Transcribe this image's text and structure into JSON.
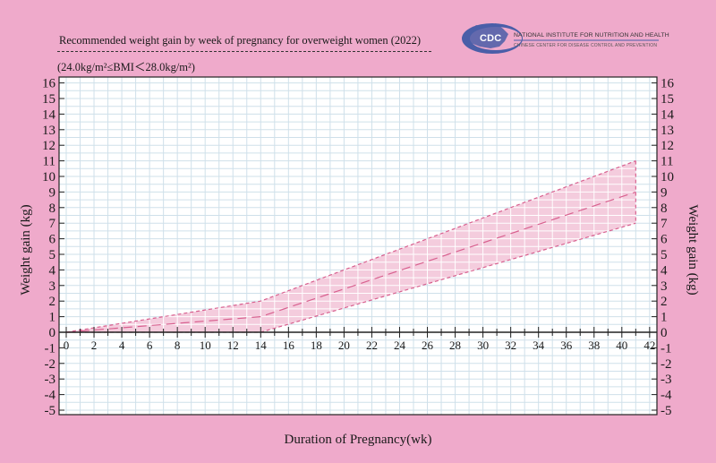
{
  "header": {
    "title": "Recommended  weight gain by week of pregnancy for overweight women (2022)",
    "subtitle": "(24.0kg/m²≤BMI＜28.0kg/m²)"
  },
  "logo": {
    "badge": "CDC",
    "line1": "NATIONAL INSTITUTE FOR NUTRITION AND HEALTH",
    "line2": "CHINESE CENTER FOR DISEASE CONTROL AND PREVENTION"
  },
  "colors": {
    "background": "#efaacb",
    "band_fill": "#f3c6d9",
    "band_line": "#d8608f",
    "grid": "#cfe0ea",
    "logo_blue": "#4a5ea8"
  },
  "chart_data": {
    "type": "area",
    "title": "Recommended  weight gain by week of pregnancy for overweight women (2022)",
    "subtitle": "(24.0kg/m²≤BMI＜28.0kg/m²)",
    "xlabel": "Duration of Pregnancy(wk)",
    "ylabel": "Weight gain (kg)",
    "ylabel_right": "Weight gain (kg)",
    "xlim": [
      0,
      42
    ],
    "ylim": [
      -5,
      16
    ],
    "x_ticks": [
      "0",
      "2",
      "4",
      "6",
      "8",
      "10",
      "12",
      "14",
      "16",
      "18",
      "20",
      "22",
      "24",
      "26",
      "28",
      "30",
      "32",
      "34",
      "36",
      "38",
      "40",
      "42"
    ],
    "y_ticks": [
      "-5",
      "-4",
      "-3",
      "-2",
      "-1",
      "0",
      "1",
      "2",
      "3",
      "4",
      "5",
      "6",
      "7",
      "8",
      "9",
      "10",
      "11",
      "12",
      "13",
      "14",
      "15",
      "16"
    ],
    "grid": true,
    "series": [
      {
        "role": "upper",
        "x": [
          0,
          14,
          41
        ],
        "values": [
          0,
          2,
          11
        ]
      },
      {
        "role": "middle",
        "x": [
          0,
          14,
          41
        ],
        "values": [
          0,
          1,
          9
        ]
      },
      {
        "role": "lower",
        "x": [
          0,
          14,
          41
        ],
        "values": [
          0,
          0,
          7
        ]
      }
    ]
  },
  "axis_labels": {
    "x": "Duration of Pregnancy(wk)",
    "y_left": "Weight gain (kg)",
    "y_right": "Weight gain (kg)"
  }
}
